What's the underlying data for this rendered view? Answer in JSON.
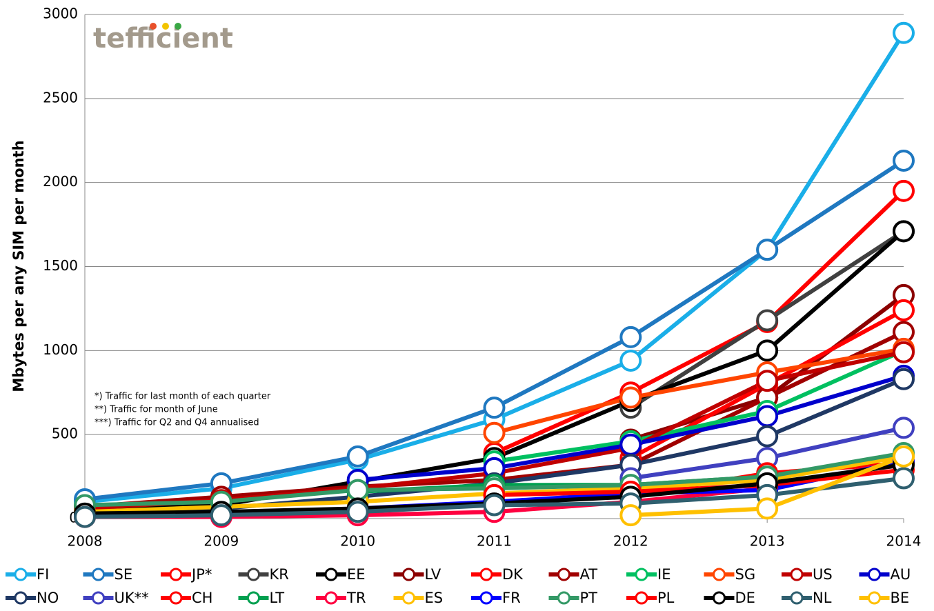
{
  "chart_data": {
    "type": "line",
    "ylabel": "Mbytes per any SIM per month",
    "logo": "tefficient",
    "annotations": [
      "*) Traffic for last month of each quarter",
      "**) Traffic for month of June",
      "***) Traffic for Q2 and Q4 annualised"
    ],
    "x": [
      2008,
      2009,
      2010,
      2011,
      2012,
      2013,
      2014
    ],
    "xlim": [
      2008,
      2014
    ],
    "xticks": [
      2008,
      2009,
      2010,
      2011,
      2012,
      2013,
      2014
    ],
    "ylim": [
      0,
      3000
    ],
    "yticks": [
      0,
      500,
      1000,
      1500,
      2000,
      2500,
      3000
    ],
    "grid": true,
    "legend": "bottom",
    "series": [
      {
        "name": "FI",
        "color": "#1aaee8",
        "values": [
          100,
          180,
          350,
          590,
          940,
          1600,
          2890
        ]
      },
      {
        "name": "SE",
        "color": "#1f78c0",
        "values": [
          115,
          210,
          370,
          660,
          1080,
          1600,
          2130
        ]
      },
      {
        "name": "JP*",
        "color": "#ff0000",
        "values": [
          null,
          null,
          null,
          390,
          750,
          1170,
          1950
        ]
      },
      {
        "name": "KR",
        "color": "#404040",
        "values": [
          null,
          null,
          null,
          null,
          660,
          1180,
          1710
        ]
      },
      {
        "name": "EE",
        "color": "#000000",
        "values": [
          50,
          80,
          220,
          360,
          700,
          1000,
          1710
        ]
      },
      {
        "name": "LV",
        "color": "#8b0000",
        "values": [
          null,
          null,
          null,
          null,
          470,
          720,
          1330
        ]
      },
      {
        "name": "DK",
        "color": "#ff0000",
        "values": [
          null,
          null,
          null,
          null,
          360,
          800,
          1240
        ]
      },
      {
        "name": "AT",
        "color": "#a00000",
        "values": [
          70,
          130,
          190,
          230,
          320,
          720,
          1110
        ]
      },
      {
        "name": "IE",
        "color": "#00c060",
        "values": [
          null,
          null,
          null,
          340,
          460,
          640,
          1000
        ]
      },
      {
        "name": "SG",
        "color": "#ff4500",
        "values": [
          null,
          null,
          null,
          510,
          720,
          870,
          1010
        ]
      },
      {
        "name": "US",
        "color": "#c00000",
        "values": [
          60,
          110,
          180,
          270,
          420,
          820,
          990
        ]
      },
      {
        "name": "AU",
        "color": "#0000cc",
        "values": [
          null,
          null,
          230,
          300,
          440,
          610,
          850
        ]
      },
      {
        "name": "NO",
        "color": "#1f3864",
        "values": [
          30,
          60,
          130,
          210,
          320,
          490,
          830
        ]
      },
      {
        "name": "UK**",
        "color": "#4040c0",
        "values": [
          null,
          null,
          null,
          null,
          240,
          360,
          540
        ]
      },
      {
        "name": "CH",
        "color": "#ff0000",
        "values": [
          null,
          null,
          null,
          null,
          140,
          270,
          330
        ]
      },
      {
        "name": "LT",
        "color": "#00a050",
        "values": [
          null,
          null,
          160,
          200,
          200,
          250,
          380
        ]
      },
      {
        "name": "TR",
        "color": "#ff0040",
        "values": [
          10,
          10,
          20,
          40,
          100,
          180,
          340
        ]
      },
      {
        "name": "ES",
        "color": "#ffc000",
        "values": [
          40,
          70,
          100,
          150,
          180,
          230,
          370
        ]
      },
      {
        "name": "FR",
        "color": "#0000ff",
        "values": [
          20,
          30,
          60,
          100,
          150,
          170,
          340
        ]
      },
      {
        "name": "PT",
        "color": "#339966",
        "values": [
          80,
          100,
          170,
          180,
          200,
          250,
          390
        ]
      },
      {
        "name": "PL",
        "color": "#ff0000",
        "values": [
          null,
          null,
          null,
          140,
          160,
          200,
          290
        ]
      },
      {
        "name": "DE",
        "color": "#000000",
        "values": [
          30,
          40,
          60,
          90,
          130,
          210,
          320
        ]
      },
      {
        "name": "NL",
        "color": "#2f5f6f",
        "values": [
          10,
          20,
          40,
          80,
          90,
          140,
          240
        ]
      },
      {
        "name": "BE",
        "color": "#ffc000",
        "values": [
          null,
          null,
          null,
          null,
          20,
          60,
          370
        ]
      }
    ]
  }
}
